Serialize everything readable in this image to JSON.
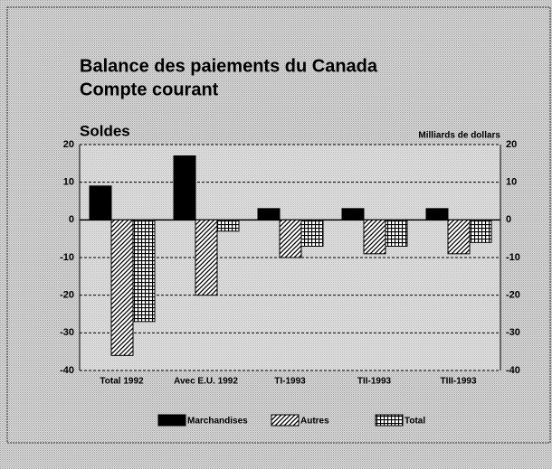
{
  "chart_data": {
    "type": "bar",
    "title": "Balance des paiements du Canada",
    "subtitle": "Compte courant",
    "ylabel": "Soldes",
    "y2label": "Milliards de dollars",
    "categories": [
      "Total 1992",
      "Avec E.U. 1992",
      "TI-1993",
      "TII-1993",
      "TIII-1993"
    ],
    "series": [
      {
        "name": "Marchandises",
        "color": "#000000",
        "pattern": "solid",
        "values": [
          9,
          17,
          3,
          3,
          3
        ]
      },
      {
        "name": "Autres",
        "color": "#000000",
        "pattern": "diagonal",
        "values": [
          -36,
          -20,
          -10,
          -9,
          -9
        ]
      },
      {
        "name": "Total",
        "color": "#000000",
        "pattern": "grid",
        "values": [
          -27,
          -3,
          -7,
          -7,
          -6
        ]
      }
    ],
    "ylim": [
      -40,
      20
    ],
    "yticks": [
      20,
      10,
      0,
      -10,
      -20,
      -30,
      -40
    ],
    "y2lim": [
      -40,
      20
    ],
    "y2ticks": [
      20,
      10,
      0,
      -10,
      -20,
      -30,
      -40
    ],
    "grid": true
  }
}
